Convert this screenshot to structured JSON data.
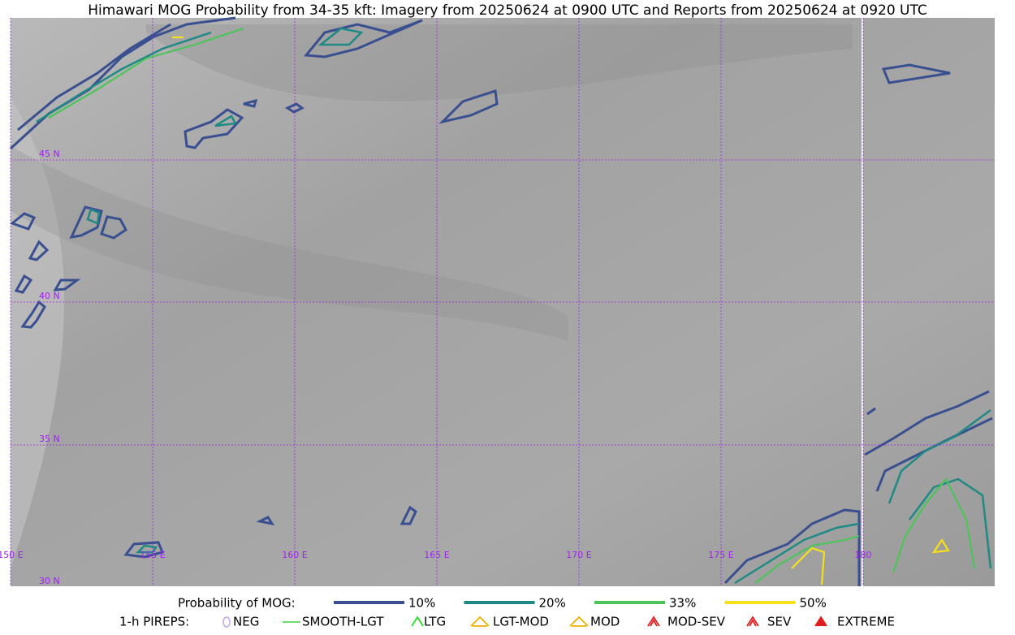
{
  "title": "Himawari MOG Probability from 34-35 kft: Imagery from 20250624 at 0900 UTC and Reports from 20250624 at 0920 UTC",
  "map": {
    "lat_labels": [
      "45 N",
      "40 N",
      "35 N",
      "30 N"
    ],
    "lon_labels": [
      "150 E",
      "155 E",
      "160 E",
      "165 E",
      "170 E",
      "175 E",
      "180"
    ]
  },
  "legend": {
    "probability": {
      "label": "Probability of MOG:",
      "items": [
        {
          "label": "10%",
          "color": "#3a4f8f"
        },
        {
          "label": "20%",
          "color": "#1f8a84"
        },
        {
          "label": "33%",
          "color": "#4cc45a"
        },
        {
          "label": "50%",
          "color": "#f5e11a"
        }
      ]
    },
    "pireps": {
      "label": "1-h PIREPS:",
      "items": [
        {
          "label": "NEG",
          "color": "#b8a8e8"
        },
        {
          "label": "SMOOTH-LGT",
          "color": "#40d040"
        },
        {
          "label": "LTG",
          "color": "#20e020"
        },
        {
          "label": "LGT-MOD",
          "color": "#f0b000"
        },
        {
          "label": "MOD",
          "color": "#f0b000"
        },
        {
          "label": "MOD-SEV",
          "color": "#e02020"
        },
        {
          "label": "SEV",
          "color": "#e02020"
        },
        {
          "label": "EXTREME",
          "color": "#e02020"
        }
      ]
    }
  }
}
